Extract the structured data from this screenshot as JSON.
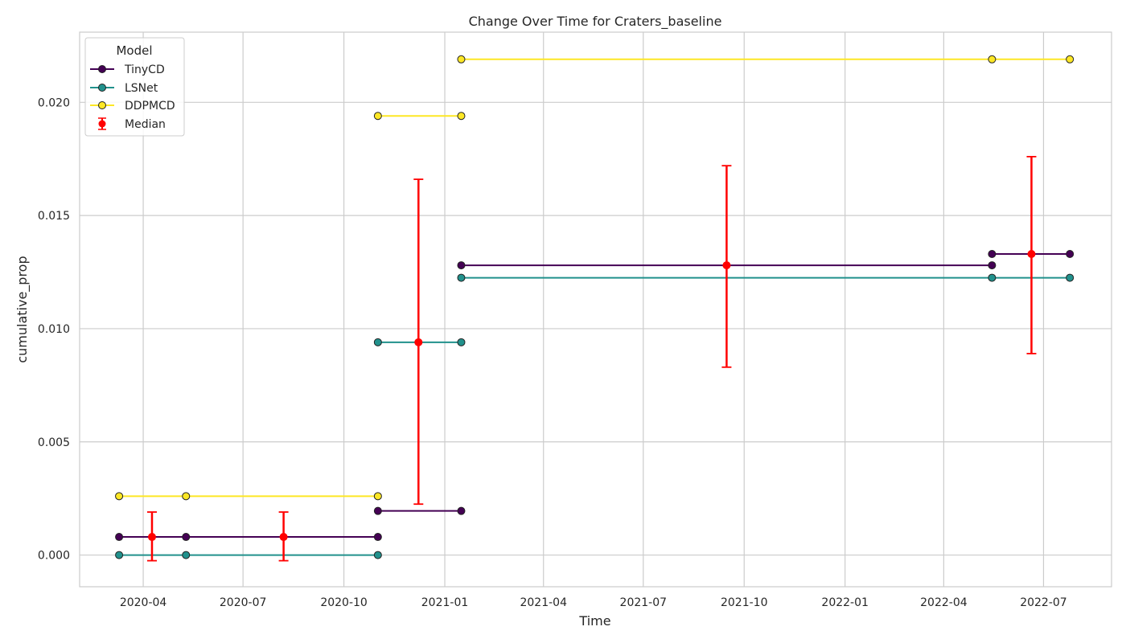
{
  "chart_data": {
    "type": "line",
    "title": "Change Over Time for Craters_baseline",
    "xlabel": "Time",
    "ylabel": "cumulative_prop",
    "x_type": "date",
    "xlim": [
      "2020-02-03",
      "2022-09-01"
    ],
    "ylim": [
      -0.0014,
      0.0231
    ],
    "grid": true,
    "x_ticks": [
      {
        "date": "2020-04-01",
        "label": "2020-04"
      },
      {
        "date": "2020-07-01",
        "label": "2020-07"
      },
      {
        "date": "2020-10-01",
        "label": "2020-10"
      },
      {
        "date": "2021-01-01",
        "label": "2021-01"
      },
      {
        "date": "2021-04-01",
        "label": "2021-04"
      },
      {
        "date": "2021-07-01",
        "label": "2021-07"
      },
      {
        "date": "2021-10-01",
        "label": "2021-10"
      },
      {
        "date": "2022-01-01",
        "label": "2022-01"
      },
      {
        "date": "2022-04-01",
        "label": "2022-04"
      },
      {
        "date": "2022-07-01",
        "label": "2022-07"
      }
    ],
    "y_ticks": [
      {
        "value": 0.0,
        "label": "0.000"
      },
      {
        "value": 0.005,
        "label": "0.005"
      },
      {
        "value": 0.01,
        "label": "0.010"
      },
      {
        "value": 0.015,
        "label": "0.015"
      },
      {
        "value": 0.02,
        "label": "0.020"
      }
    ],
    "legend": {
      "title": "Model",
      "placement": "top-left"
    },
    "series": [
      {
        "name": "TinyCD",
        "color": "#440154",
        "segments": [
          [
            {
              "x": "2020-03-10",
              "y": 0.0008
            },
            {
              "x": "2020-05-10",
              "y": 0.0008
            },
            {
              "x": "2020-11-01",
              "y": 0.0008
            }
          ],
          [
            {
              "x": "2020-11-01",
              "y": 0.00195
            },
            {
              "x": "2021-01-16",
              "y": 0.00195
            }
          ],
          [
            {
              "x": "2021-01-16",
              "y": 0.0128
            },
            {
              "x": "2022-05-15",
              "y": 0.0128
            }
          ],
          [
            {
              "x": "2022-05-15",
              "y": 0.0133
            },
            {
              "x": "2022-07-25",
              "y": 0.0133
            }
          ]
        ]
      },
      {
        "name": "LSNet",
        "color": "#21918c",
        "segments": [
          [
            {
              "x": "2020-03-10",
              "y": 0.0
            },
            {
              "x": "2020-05-10",
              "y": 0.0
            },
            {
              "x": "2020-11-01",
              "y": 0.0
            }
          ],
          [
            {
              "x": "2020-11-01",
              "y": 0.0094
            },
            {
              "x": "2021-01-16",
              "y": 0.0094
            }
          ],
          [
            {
              "x": "2021-01-16",
              "y": 0.01225
            },
            {
              "x": "2022-05-15",
              "y": 0.01225
            },
            {
              "x": "2022-07-25",
              "y": 0.01225
            }
          ]
        ]
      },
      {
        "name": "DDPMCD",
        "color": "#fde725",
        "segments": [
          [
            {
              "x": "2020-03-10",
              "y": 0.0026
            },
            {
              "x": "2020-05-10",
              "y": 0.0026
            },
            {
              "x": "2020-11-01",
              "y": 0.0026
            }
          ],
          [
            {
              "x": "2020-11-01",
              "y": 0.0194
            },
            {
              "x": "2021-01-16",
              "y": 0.0194
            }
          ],
          [
            {
              "x": "2021-01-16",
              "y": 0.0219
            },
            {
              "x": "2022-05-15",
              "y": 0.0219
            },
            {
              "x": "2022-07-25",
              "y": 0.0219
            }
          ]
        ]
      }
    ],
    "median": {
      "name": "Median",
      "color": "#ff0000",
      "points": [
        {
          "x": "2020-04-09",
          "y": 0.0008,
          "low": -0.00025,
          "high": 0.0019
        },
        {
          "x": "2020-08-07",
          "y": 0.0008,
          "low": -0.00025,
          "high": 0.0019
        },
        {
          "x": "2020-12-08",
          "y": 0.0094,
          "low": 0.00225,
          "high": 0.0166
        },
        {
          "x": "2021-09-15",
          "y": 0.0128,
          "low": 0.0083,
          "high": 0.0172
        },
        {
          "x": "2022-06-20",
          "y": 0.0133,
          "low": 0.0089,
          "high": 0.0176
        }
      ]
    }
  }
}
